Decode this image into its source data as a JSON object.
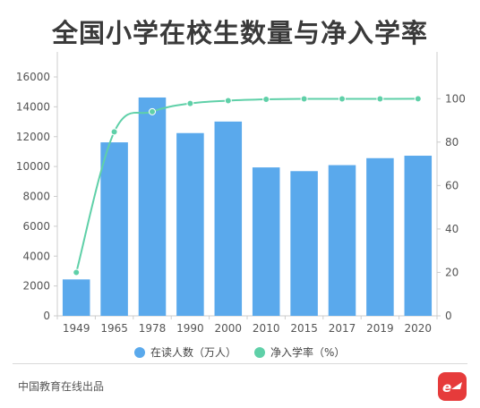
{
  "title": "全国小学在校生数量与净入学率",
  "source": "中国教育在线出品",
  "colors": {
    "bar": "#5aa9ec",
    "line": "#5fd0a8",
    "axis": "#cccccc",
    "text": "#555555",
    "logo": "#e63b3b"
  },
  "chart_data": {
    "type": "bar",
    "categories": [
      "1949",
      "1965",
      "1978",
      "1990",
      "2000",
      "2010",
      "2015",
      "2017",
      "2019",
      "2020"
    ],
    "series": [
      {
        "name": "在读人数（万人）",
        "type": "bar",
        "axis": "left",
        "values": [
          2440,
          11620,
          14624,
          12241,
          13013,
          9941,
          9692,
          10094,
          10561,
          10725
        ]
      },
      {
        "name": "净入学率（%）",
        "type": "line",
        "axis": "right",
        "values": [
          20,
          84.7,
          94,
          97.8,
          99.1,
          99.7,
          99.9,
          99.9,
          99.9,
          99.96
        ]
      }
    ],
    "y_left": {
      "min": 0,
      "max": 16000,
      "ticks": [
        0,
        2000,
        4000,
        6000,
        8000,
        10000,
        12000,
        14000,
        16000
      ]
    },
    "y_right": {
      "min": 0,
      "max": 110,
      "ticks": [
        0,
        20,
        40,
        60,
        80,
        100
      ]
    },
    "legend": {
      "position": "bottom",
      "items": [
        "在读人数（万人）",
        "净入学率（%）"
      ]
    },
    "grid": false
  }
}
